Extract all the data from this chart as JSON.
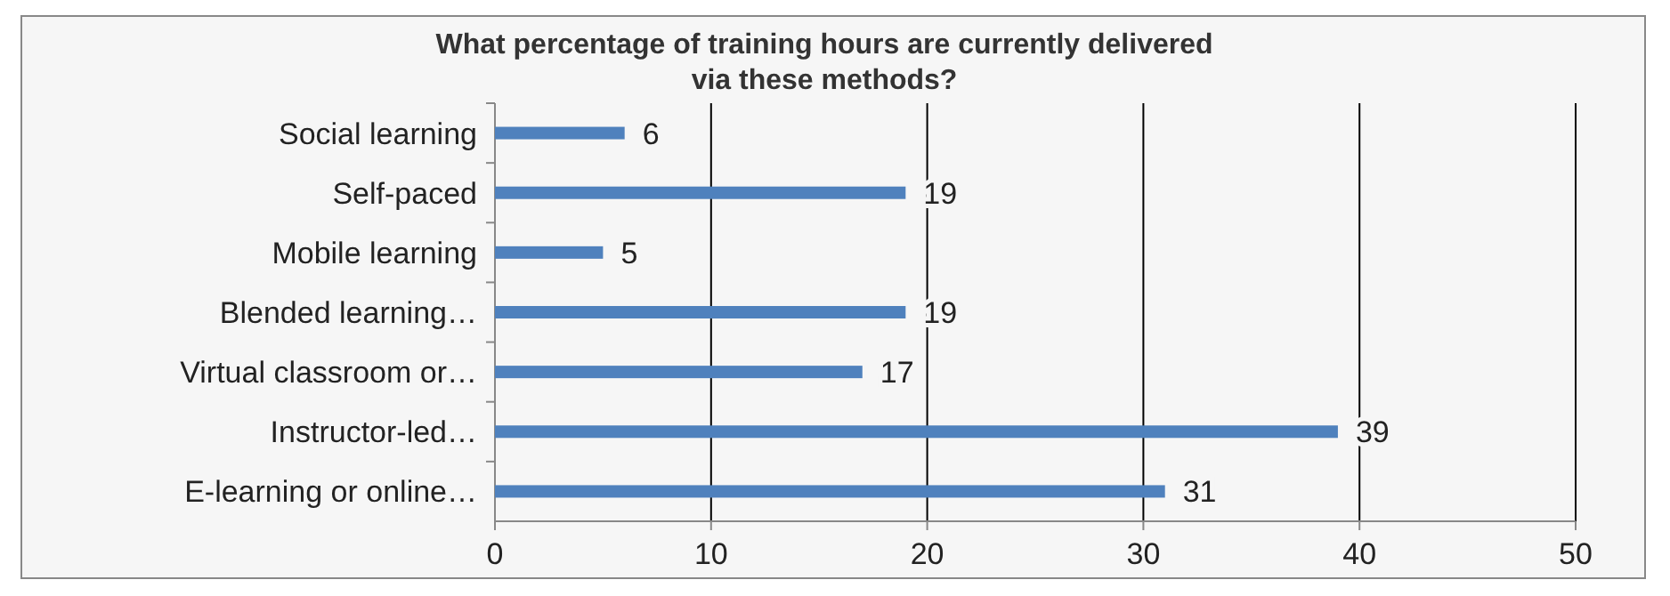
{
  "chart_data": {
    "type": "bar",
    "orientation": "horizontal",
    "title": "What percentage of training hours are currently delivered via these methods?",
    "categories": [
      "Social learning",
      "Self-paced",
      "Mobile learning",
      "Blended learning…",
      "Virtual classroom or…",
      "Instructor-led…",
      "E-learning or online…"
    ],
    "values": [
      6,
      19,
      5,
      19,
      17,
      39,
      31
    ],
    "color": "#4f81bd",
    "xlim": [
      0,
      50
    ],
    "xticks": [
      0,
      10,
      20,
      30,
      40,
      50
    ],
    "grid": "x",
    "data_labels": true
  }
}
